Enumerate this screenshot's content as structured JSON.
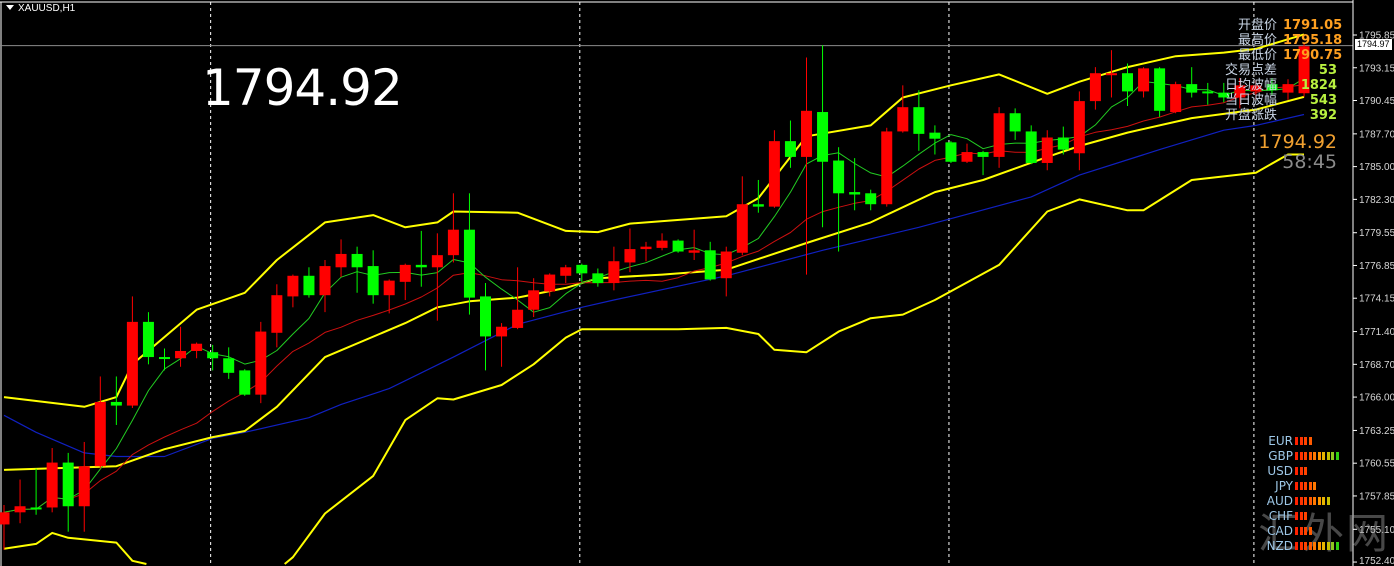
{
  "window": {
    "symbol_label": "XAUUSD,H1"
  },
  "overlay": {
    "big_price": "1794.92"
  },
  "info_panel": {
    "rows": [
      {
        "label": "开盘价",
        "value": "1791.05",
        "color": "#ffa020"
      },
      {
        "label": "最高价",
        "value": "1795.18",
        "color": "#ffa020"
      },
      {
        "label": "最低价",
        "value": "1790.75",
        "color": "#ffa020"
      },
      {
        "label": "交易点差",
        "value": "53",
        "color": "#b8f040"
      },
      {
        "label": "日均波幅",
        "value": "1824",
        "color": "#b8f040"
      },
      {
        "label": "当日波幅",
        "value": "543",
        "color": "#b8f040"
      },
      {
        "label": "开盘涨跌",
        "value": "392",
        "color": "#b8f040"
      }
    ],
    "current_price": "1794.92",
    "countdown": "58:45"
  },
  "ask_label": "1794.97",
  "currency_strength": {
    "max_level": 10,
    "items": [
      {
        "label": "EUR",
        "level": 4
      },
      {
        "label": "GBP",
        "level": 10
      },
      {
        "label": "USD",
        "level": 3
      },
      {
        "label": "JPY",
        "level": 5
      },
      {
        "label": "AUD",
        "level": 8
      },
      {
        "label": "CHF",
        "level": 3
      },
      {
        "label": "CAD",
        "level": 4
      },
      {
        "label": "NZD",
        "level": 10
      }
    ],
    "segment_colors": [
      "#ff2200",
      "#ff3300",
      "#ff4400",
      "#ff5a00",
      "#ff7800",
      "#ff9600",
      "#e8b400",
      "#c8c000",
      "#90c820",
      "#30d010"
    ]
  },
  "watermark": "汇外网",
  "chart_data": {
    "type": "candlestick",
    "symbol": "XAUUSD",
    "timeframe": "H1",
    "ylim": [
      1752.4,
      1798.7
    ],
    "y_ticks": [
      "1795.85",
      "1793.15",
      "1790.45",
      "1787.70",
      "1785.00",
      "1782.30",
      "1779.55",
      "1776.85",
      "1774.15",
      "1771.40",
      "1768.70",
      "1766.00",
      "1763.25",
      "1760.55",
      "1757.85",
      "1755.10",
      "1752.40"
    ],
    "colors": {
      "bull": "#ff0000",
      "bear": "#00ff00",
      "bands": "#ffff00",
      "fast_ma": "#22cc22",
      "slow_ma": "#cc1010",
      "long_ma": "#1020c0",
      "ask_line": "#8c8c8c",
      "separator": "#ffffff"
    },
    "ask_price": 1794.97,
    "fields": [
      "open",
      "high",
      "low",
      "close"
    ],
    "candles": [
      [
        1755.5,
        1757.1,
        1753.4,
        1756.5
      ],
      [
        1756.5,
        1759.2,
        1755.6,
        1757.0
      ],
      [
        1756.9,
        1760.1,
        1756.3,
        1756.8
      ],
      [
        1756.9,
        1761.8,
        1756.5,
        1760.6
      ],
      [
        1760.6,
        1761.4,
        1754.9,
        1757.0
      ],
      [
        1757.0,
        1762.3,
        1754.9,
        1760.3
      ],
      [
        1760.3,
        1767.7,
        1760.1,
        1765.6
      ],
      [
        1765.6,
        1767.7,
        1763.7,
        1765.3
      ],
      [
        1765.3,
        1774.3,
        1765.1,
        1772.2
      ],
      [
        1772.2,
        1773.0,
        1768.7,
        1769.3
      ],
      [
        1769.3,
        1770.0,
        1768.2,
        1769.2
      ],
      [
        1769.2,
        1771.8,
        1768.5,
        1769.8
      ],
      [
        1769.8,
        1770.5,
        1769.2,
        1770.4
      ],
      [
        1769.7,
        1770.3,
        1768.2,
        1769.2
      ],
      [
        1769.2,
        1770.1,
        1767.5,
        1768.0
      ],
      [
        1768.2,
        1768.3,
        1766.1,
        1766.2
      ],
      [
        1766.2,
        1772.2,
        1765.5,
        1771.4
      ],
      [
        1771.3,
        1775.3,
        1770.1,
        1774.4
      ],
      [
        1774.3,
        1776.1,
        1773.4,
        1776.0
      ],
      [
        1776.0,
        1776.7,
        1774.2,
        1774.4
      ],
      [
        1774.4,
        1777.3,
        1773.0,
        1776.8
      ],
      [
        1776.7,
        1779.0,
        1775.9,
        1777.8
      ],
      [
        1777.8,
        1778.4,
        1774.6,
        1776.7
      ],
      [
        1776.8,
        1778.1,
        1773.7,
        1774.4
      ],
      [
        1774.4,
        1775.7,
        1772.9,
        1775.6
      ],
      [
        1775.5,
        1777.0,
        1774.0,
        1776.9
      ],
      [
        1776.9,
        1779.7,
        1775.1,
        1776.7
      ],
      [
        1776.7,
        1779.5,
        1772.3,
        1777.7
      ],
      [
        1777.7,
        1782.8,
        1777.1,
        1779.8
      ],
      [
        1779.8,
        1782.8,
        1772.8,
        1774.2
      ],
      [
        1774.3,
        1775.4,
        1768.2,
        1771.0
      ],
      [
        1771.0,
        1772.1,
        1768.5,
        1771.8
      ],
      [
        1771.7,
        1776.7,
        1771.6,
        1773.2
      ],
      [
        1773.2,
        1775.8,
        1772.6,
        1774.8
      ],
      [
        1774.7,
        1776.2,
        1774.3,
        1776.1
      ],
      [
        1776.0,
        1776.9,
        1775.4,
        1776.7
      ],
      [
        1776.9,
        1777.0,
        1775.5,
        1776.2
      ],
      [
        1776.2,
        1776.6,
        1775.1,
        1775.4
      ],
      [
        1775.4,
        1778.4,
        1774.8,
        1777.2
      ],
      [
        1777.1,
        1779.9,
        1776.3,
        1778.2
      ],
      [
        1778.2,
        1778.8,
        1777.2,
        1778.4
      ],
      [
        1778.3,
        1779.5,
        1778.1,
        1778.9
      ],
      [
        1778.9,
        1779.0,
        1777.9,
        1778.0
      ],
      [
        1777.9,
        1779.8,
        1777.3,
        1778.1
      ],
      [
        1778.1,
        1778.8,
        1775.6,
        1775.7
      ],
      [
        1775.8,
        1778.4,
        1774.3,
        1778.0
      ],
      [
        1777.9,
        1784.2,
        1777.7,
        1781.9
      ],
      [
        1781.9,
        1783.9,
        1781.2,
        1781.7
      ],
      [
        1781.7,
        1788.0,
        1781.6,
        1787.1
      ],
      [
        1787.1,
        1788.8,
        1784.9,
        1785.8
      ],
      [
        1785.8,
        1794.0,
        1776.1,
        1789.6
      ],
      [
        1789.5,
        1795.0,
        1780.0,
        1785.4
      ],
      [
        1785.5,
        1786.6,
        1778.0,
        1782.8
      ],
      [
        1782.9,
        1785.7,
        1781.4,
        1782.7
      ],
      [
        1782.8,
        1783.1,
        1781.4,
        1781.9
      ],
      [
        1781.9,
        1788.2,
        1781.7,
        1787.9
      ],
      [
        1787.9,
        1791.7,
        1787.8,
        1789.9
      ],
      [
        1789.9,
        1791.3,
        1786.3,
        1787.7
      ],
      [
        1787.8,
        1788.4,
        1786.0,
        1787.3
      ],
      [
        1787.0,
        1787.1,
        1785.3,
        1785.4
      ],
      [
        1785.4,
        1786.9,
        1785.3,
        1786.2
      ],
      [
        1786.2,
        1786.3,
        1784.3,
        1785.8
      ],
      [
        1785.8,
        1789.9,
        1784.9,
        1789.4
      ],
      [
        1789.4,
        1789.8,
        1787.2,
        1787.9
      ],
      [
        1787.9,
        1788.4,
        1785.2,
        1785.3
      ],
      [
        1785.3,
        1788.0,
        1784.7,
        1787.4
      ],
      [
        1787.4,
        1788.3,
        1786.0,
        1786.4
      ],
      [
        1786.1,
        1791.2,
        1784.7,
        1790.4
      ],
      [
        1790.4,
        1793.2,
        1789.7,
        1792.7
      ],
      [
        1792.6,
        1794.6,
        1790.7,
        1792.7
      ],
      [
        1792.7,
        1793.5,
        1790.0,
        1791.2
      ],
      [
        1791.2,
        1793.2,
        1790.7,
        1793.1
      ],
      [
        1793.1,
        1793.2,
        1789.1,
        1789.6
      ],
      [
        1789.5,
        1792.0,
        1789.4,
        1791.8
      ],
      [
        1791.8,
        1793.2,
        1790.7,
        1791.1
      ],
      [
        1791.2,
        1791.9,
        1790.1,
        1791.1
      ],
      [
        1791.1,
        1791.9,
        1790.3,
        1790.7
      ],
      [
        1790.7,
        1792.3,
        1789.8,
        1791.7
      ],
      [
        1791.2,
        1792.1,
        1790.5,
        1791.7
      ],
      [
        1791.8,
        1792.3,
        1790.9,
        1791.3
      ],
      [
        1791.1,
        1792.2,
        1790.5,
        1791.8
      ],
      [
        1791.05,
        1795.18,
        1790.75,
        1794.92
      ]
    ],
    "period_separators_before_candle": [
      13,
      36,
      59,
      78
    ],
    "upper_band": [
      [
        0,
        1766.0
      ],
      [
        5,
        1765.2
      ],
      [
        7,
        1766.0
      ],
      [
        8,
        1768.7
      ],
      [
        12,
        1773.2
      ],
      [
        15,
        1774.6
      ],
      [
        17,
        1777.3
      ],
      [
        20,
        1780.4
      ],
      [
        23,
        1781.0
      ],
      [
        25,
        1780.0
      ],
      [
        27,
        1780.4
      ],
      [
        28,
        1781.3
      ],
      [
        32,
        1781.2
      ],
      [
        35,
        1779.7
      ],
      [
        37,
        1779.6
      ],
      [
        39,
        1780.3
      ],
      [
        45,
        1780.9
      ],
      [
        47,
        1782.4
      ],
      [
        50,
        1787.5
      ],
      [
        54,
        1788.4
      ],
      [
        56,
        1790.7
      ],
      [
        59,
        1791.7
      ],
      [
        62,
        1792.6
      ],
      [
        65,
        1791.0
      ],
      [
        67,
        1792.0
      ],
      [
        70,
        1793.2
      ],
      [
        73,
        1794.1
      ],
      [
        76,
        1794.4
      ],
      [
        78,
        1794.7
      ],
      [
        81,
        1795.9
      ]
    ],
    "middle_band": [
      [
        0,
        1760.0
      ],
      [
        7,
        1760.3
      ],
      [
        10,
        1761.7
      ],
      [
        13,
        1762.7
      ],
      [
        15,
        1763.2
      ],
      [
        17,
        1765.2
      ],
      [
        20,
        1769.3
      ],
      [
        25,
        1772.1
      ],
      [
        27,
        1773.4
      ],
      [
        29,
        1773.9
      ],
      [
        32,
        1774.2
      ],
      [
        35,
        1775.0
      ],
      [
        37,
        1775.8
      ],
      [
        41,
        1776.1
      ],
      [
        45,
        1776.5
      ],
      [
        50,
        1778.7
      ],
      [
        54,
        1780.4
      ],
      [
        58,
        1782.9
      ],
      [
        61,
        1783.9
      ],
      [
        65,
        1785.8
      ],
      [
        67,
        1786.7
      ],
      [
        70,
        1787.8
      ],
      [
        74,
        1789.0
      ],
      [
        78,
        1789.7
      ],
      [
        81,
        1790.75
      ]
    ],
    "lower_band": [
      [
        0,
        1753.5
      ],
      [
        2,
        1753.9
      ],
      [
        3,
        1754.8
      ],
      [
        4,
        1754.4
      ],
      [
        7,
        1754.0
      ],
      [
        8,
        1752.5
      ],
      [
        10,
        1751.9
      ],
      [
        12,
        1748.0
      ],
      [
        15,
        1749.5
      ],
      [
        18,
        1752.8
      ],
      [
        20,
        1756.4
      ],
      [
        23,
        1759.5
      ],
      [
        25,
        1764.1
      ],
      [
        27,
        1765.9
      ],
      [
        28,
        1765.8
      ],
      [
        31,
        1767.0
      ],
      [
        33,
        1768.7
      ],
      [
        35,
        1770.9
      ],
      [
        36,
        1771.6
      ],
      [
        42,
        1771.6
      ],
      [
        45,
        1771.7
      ],
      [
        47,
        1771.2
      ],
      [
        48,
        1769.9
      ],
      [
        50,
        1769.7
      ],
      [
        52,
        1771.4
      ],
      [
        54,
        1772.5
      ],
      [
        56,
        1772.8
      ],
      [
        58,
        1774.0
      ],
      [
        62,
        1776.9
      ],
      [
        65,
        1781.3
      ],
      [
        67,
        1782.3
      ],
      [
        70,
        1781.4
      ],
      [
        71,
        1781.4
      ],
      [
        74,
        1783.9
      ],
      [
        78,
        1784.5
      ],
      [
        80,
        1786.0
      ],
      [
        81,
        1786.0
      ]
    ],
    "long_ma": [
      [
        0,
        1764.5
      ],
      [
        2,
        1763.1
      ],
      [
        5,
        1761.4
      ],
      [
        7,
        1761.1
      ],
      [
        10,
        1761.1
      ],
      [
        13,
        1762.6
      ],
      [
        15,
        1763.1
      ],
      [
        19,
        1764.3
      ],
      [
        21,
        1765.4
      ],
      [
        24,
        1766.7
      ],
      [
        28,
        1769.3
      ],
      [
        32,
        1772.0
      ],
      [
        36,
        1773.4
      ],
      [
        38,
        1774.0
      ],
      [
        45,
        1776.0
      ],
      [
        51,
        1778.1
      ],
      [
        57,
        1780.0
      ],
      [
        64,
        1782.5
      ],
      [
        67,
        1784.3
      ],
      [
        72,
        1786.4
      ],
      [
        76,
        1788.0
      ],
      [
        78,
        1788.4
      ],
      [
        81,
        1789.3
      ]
    ]
  }
}
